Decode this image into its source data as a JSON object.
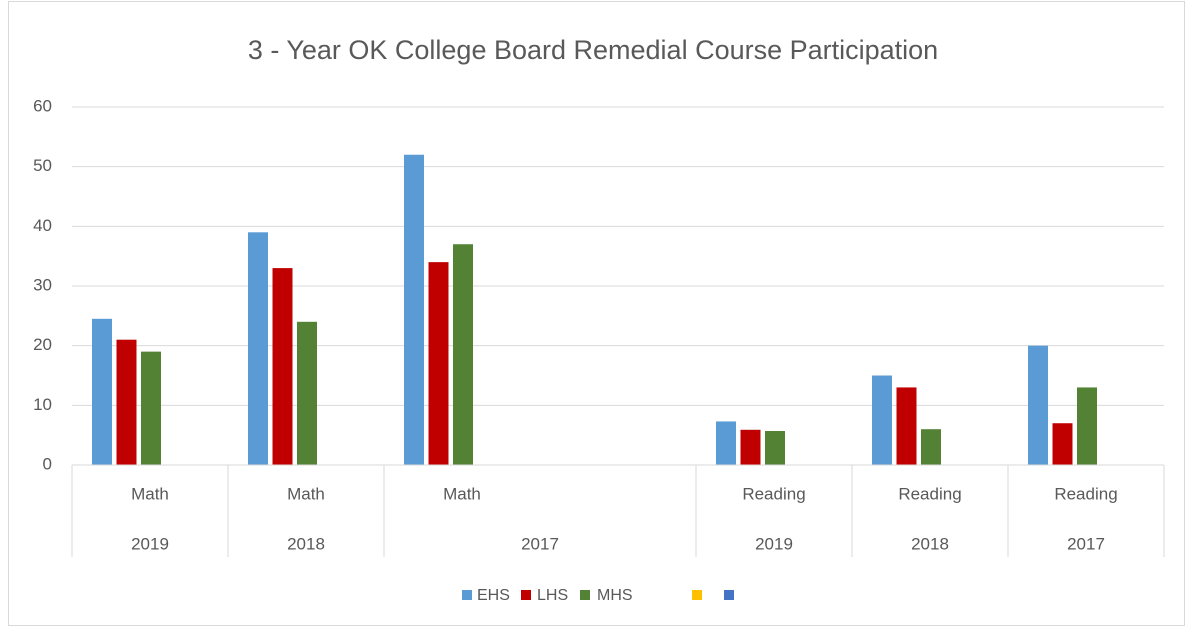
{
  "chart_data": {
    "type": "bar",
    "title": "3 - Year OK College Board Remedial Course Participation",
    "categories": [
      "Math",
      "Math",
      "Math",
      null,
      "Reading",
      "Reading",
      "Reading"
    ],
    "groups": [
      {
        "label": "2019",
        "span": 1
      },
      {
        "label": "2018",
        "span": 1
      },
      {
        "label": "2017",
        "span": 2
      },
      {
        "label": "2019",
        "span": 1
      },
      {
        "label": "2018",
        "span": 1
      },
      {
        "label": "2017",
        "span": 1
      }
    ],
    "series": [
      {
        "name": "EHS",
        "color": "#5b9bd5",
        "values": [
          24.5,
          39,
          52,
          null,
          7.3,
          15,
          20
        ]
      },
      {
        "name": "LHS",
        "color": "#c00000",
        "values": [
          21,
          33,
          34,
          null,
          5.9,
          13,
          7
        ]
      },
      {
        "name": "MHS",
        "color": "#548235",
        "values": [
          19,
          24,
          37,
          null,
          5.7,
          6,
          13
        ]
      },
      {
        "name": null,
        "color": "#ffc000",
        "values": [
          null,
          null,
          null,
          null,
          null,
          null,
          null
        ]
      },
      {
        "name": null,
        "color": "#4472c4",
        "values": [
          null,
          null,
          null,
          null,
          null,
          null,
          null
        ]
      }
    ],
    "ylim": [
      0,
      60
    ],
    "yticks": [
      0,
      10,
      20,
      30,
      40,
      50,
      60
    ],
    "grid": true,
    "legend": "bottom"
  }
}
